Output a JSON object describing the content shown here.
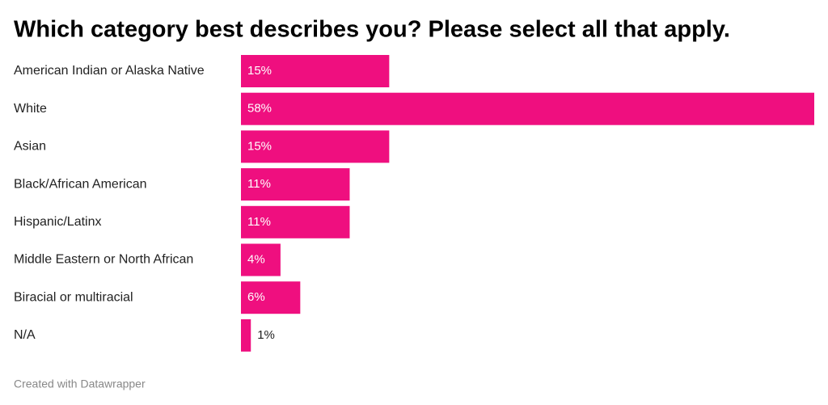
{
  "chart_data": {
    "type": "bar",
    "orientation": "horizontal",
    "title": "Which category best describes you? Please select all that apply.",
    "categories": [
      "American Indian or Alaska Native",
      "White",
      "Asian",
      "Black/African American",
      "Hispanic/Latinx",
      "Middle Eastern or North African",
      "Biracial or multiracial",
      "N/A"
    ],
    "values": [
      15,
      58,
      15,
      11,
      11,
      4,
      6,
      1
    ],
    "value_labels": [
      "15%",
      "58%",
      "15%",
      "11%",
      "11%",
      "4%",
      "6%",
      "1%"
    ],
    "color": "#ef0f7f",
    "credit": "Created with Datawrapper"
  }
}
